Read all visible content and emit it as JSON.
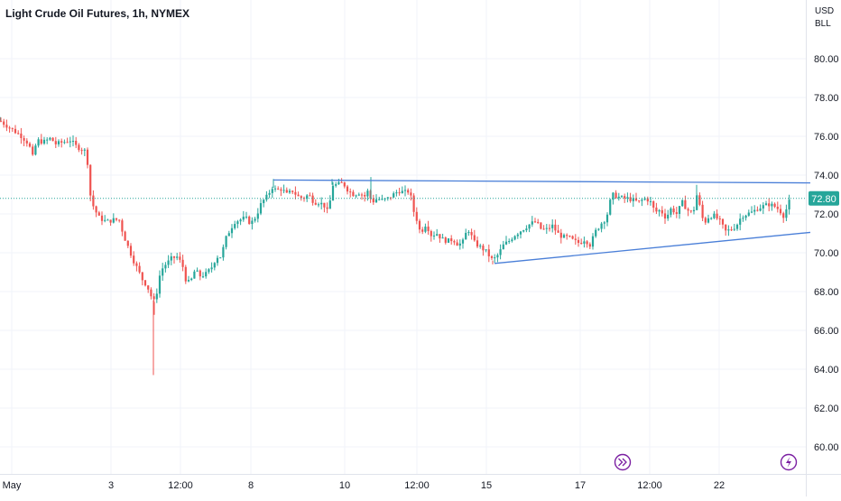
{
  "header": {
    "title": "Light Crude Oil Futures, 1h, NYMEX",
    "currency": "USD",
    "unit": "BLL"
  },
  "colors": {
    "up": "#26a69a",
    "down": "#ef5350",
    "trendline": "#4a7fd8",
    "price_line": "#26a69a",
    "grid": "#f0f3fa",
    "event": "#7b1fa2"
  },
  "icons": {
    "event_left": "fast-forward-icon",
    "event_right": "lightning-icon"
  },
  "chart_data": {
    "type": "candlestick",
    "title": "Light Crude Oil Futures, 1h, NYMEX",
    "yaxis_ticks": [
      "80.00",
      "78.00",
      "76.00",
      "74.00",
      "72.00",
      "70.00",
      "68.00",
      "66.00",
      "64.00",
      "62.00",
      "60.00"
    ],
    "ylim": [
      59.0,
      81.6
    ],
    "xaxis_ticks": [
      "May",
      "3",
      "12:00",
      "8",
      "10",
      "12:00",
      "15",
      "17",
      "12:00",
      "22"
    ],
    "last_price": 72.8,
    "last_price_label": "72.80",
    "grid": true,
    "anchors": [
      [
        0,
        76.8
      ],
      [
        6,
        76.6
      ],
      [
        15,
        76.3
      ],
      [
        24,
        76.0
      ],
      [
        32,
        75.6
      ],
      [
        36,
        74.9
      ],
      [
        41,
        75.8
      ],
      [
        48,
        75.7
      ],
      [
        56,
        75.9
      ],
      [
        62,
        75.6
      ],
      [
        70,
        75.7
      ],
      [
        78,
        75.8
      ],
      [
        84,
        75.5
      ],
      [
        96,
        75.2
      ],
      [
        100,
        73.0
      ],
      [
        104,
        72.3
      ],
      [
        110,
        71.8
      ],
      [
        118,
        71.6
      ],
      [
        126,
        71.7
      ],
      [
        132,
        71.7
      ],
      [
        137,
        70.9
      ],
      [
        142,
        70.3
      ],
      [
        148,
        69.6
      ],
      [
        153,
        69.1
      ],
      [
        158,
        68.6
      ],
      [
        163,
        68.3
      ],
      [
        168,
        67.7
      ],
      [
        172,
        67.4
      ],
      [
        176,
        68.7
      ],
      [
        181,
        69.3
      ],
      [
        186,
        69.5
      ],
      [
        190,
        69.7
      ],
      [
        196,
        69.8
      ],
      [
        202,
        69.4
      ],
      [
        207,
        68.4
      ],
      [
        212,
        68.6
      ],
      [
        216,
        69.1
      ],
      [
        222,
        68.8
      ],
      [
        228,
        68.9
      ],
      [
        234,
        69.2
      ],
      [
        240,
        69.8
      ],
      [
        245,
        69.8
      ],
      [
        250,
        70.7
      ],
      [
        255,
        71.2
      ],
      [
        260,
        71.6
      ],
      [
        266,
        71.7
      ],
      [
        272,
        71.8
      ],
      [
        278,
        71.5
      ],
      [
        284,
        71.9
      ],
      [
        290,
        72.6
      ],
      [
        296,
        72.9
      ],
      [
        302,
        73.4
      ],
      [
        306,
        73.2
      ],
      [
        312,
        73.3
      ],
      [
        318,
        73.0
      ],
      [
        324,
        73.2
      ],
      [
        330,
        72.9
      ],
      [
        336,
        72.8
      ],
      [
        342,
        73.0
      ],
      [
        348,
        72.6
      ],
      [
        354,
        72.6
      ],
      [
        360,
        72.4
      ],
      [
        364,
        72.0
      ],
      [
        368,
        73.5
      ],
      [
        374,
        73.5
      ],
      [
        380,
        73.6
      ],
      [
        386,
        73.2
      ],
      [
        392,
        73.0
      ],
      [
        398,
        73.1
      ],
      [
        404,
        72.9
      ],
      [
        408,
        73.2
      ],
      [
        412,
        72.6
      ],
      [
        418,
        72.8
      ],
      [
        424,
        72.7
      ],
      [
        430,
        72.8
      ],
      [
        436,
        73.0
      ],
      [
        442,
        73.2
      ],
      [
        448,
        73.1
      ],
      [
        454,
        73.2
      ],
      [
        458,
        72.2
      ],
      [
        462,
        71.7
      ],
      [
        466,
        71.0
      ],
      [
        472,
        71.5
      ],
      [
        478,
        70.9
      ],
      [
        484,
        71.0
      ],
      [
        490,
        70.7
      ],
      [
        496,
        70.6
      ],
      [
        502,
        70.7
      ],
      [
        508,
        70.4
      ],
      [
        514,
        70.6
      ],
      [
        518,
        71.3
      ],
      [
        522,
        70.9
      ],
      [
        526,
        70.5
      ],
      [
        532,
        70.3
      ],
      [
        538,
        70.1
      ],
      [
        546,
        69.6
      ],
      [
        552,
        69.9
      ],
      [
        558,
        70.4
      ],
      [
        564,
        70.6
      ],
      [
        570,
        70.9
      ],
      [
        576,
        71.1
      ],
      [
        582,
        71.3
      ],
      [
        588,
        71.5
      ],
      [
        594,
        71.6
      ],
      [
        600,
        71.2
      ],
      [
        606,
        71.2
      ],
      [
        612,
        71.4
      ],
      [
        618,
        71.0
      ],
      [
        624,
        70.8
      ],
      [
        630,
        70.8
      ],
      [
        636,
        70.6
      ],
      [
        642,
        70.5
      ],
      [
        648,
        70.7
      ],
      [
        654,
        70.4
      ],
      [
        660,
        71.1
      ],
      [
        666,
        71.5
      ],
      [
        672,
        71.8
      ],
      [
        678,
        73.0
      ],
      [
        684,
        72.9
      ],
      [
        690,
        72.8
      ],
      [
        696,
        72.8
      ],
      [
        702,
        72.7
      ],
      [
        708,
        72.6
      ],
      [
        714,
        72.8
      ],
      [
        720,
        72.7
      ],
      [
        726,
        72.1
      ],
      [
        732,
        72.2
      ],
      [
        738,
        71.8
      ],
      [
        744,
        72.3
      ],
      [
        750,
        72.0
      ],
      [
        756,
        72.6
      ],
      [
        762,
        72.2
      ],
      [
        768,
        72.0
      ],
      [
        772,
        73.0
      ],
      [
        776,
        72.3
      ],
      [
        780,
        71.5
      ],
      [
        786,
        71.9
      ],
      [
        792,
        71.9
      ],
      [
        798,
        71.6
      ],
      [
        804,
        71.1
      ],
      [
        810,
        71.2
      ],
      [
        816,
        71.4
      ],
      [
        822,
        71.9
      ],
      [
        828,
        72.0
      ],
      [
        834,
        72.1
      ],
      [
        840,
        72.3
      ],
      [
        846,
        72.4
      ],
      [
        852,
        72.5
      ],
      [
        858,
        72.4
      ],
      [
        864,
        72.2
      ],
      [
        868,
        71.9
      ],
      [
        872,
        72.3
      ],
      [
        876,
        72.8
      ]
    ],
    "spikes": [
      [
        0,
        77.0
      ],
      [
        170,
        63.7
      ],
      [
        303,
        73.8
      ],
      [
        368,
        73.8
      ],
      [
        411,
        73.9
      ],
      [
        772,
        73.5
      ],
      [
        546,
        69.4
      ],
      [
        171,
        66.8
      ]
    ],
    "trendlines": [
      {
        "from": [
          303,
          73.75
        ],
        "to": [
          898,
          73.6
        ]
      },
      {
        "from": [
          548,
          69.45
        ],
        "to": [
          898,
          71.05
        ]
      }
    ]
  }
}
